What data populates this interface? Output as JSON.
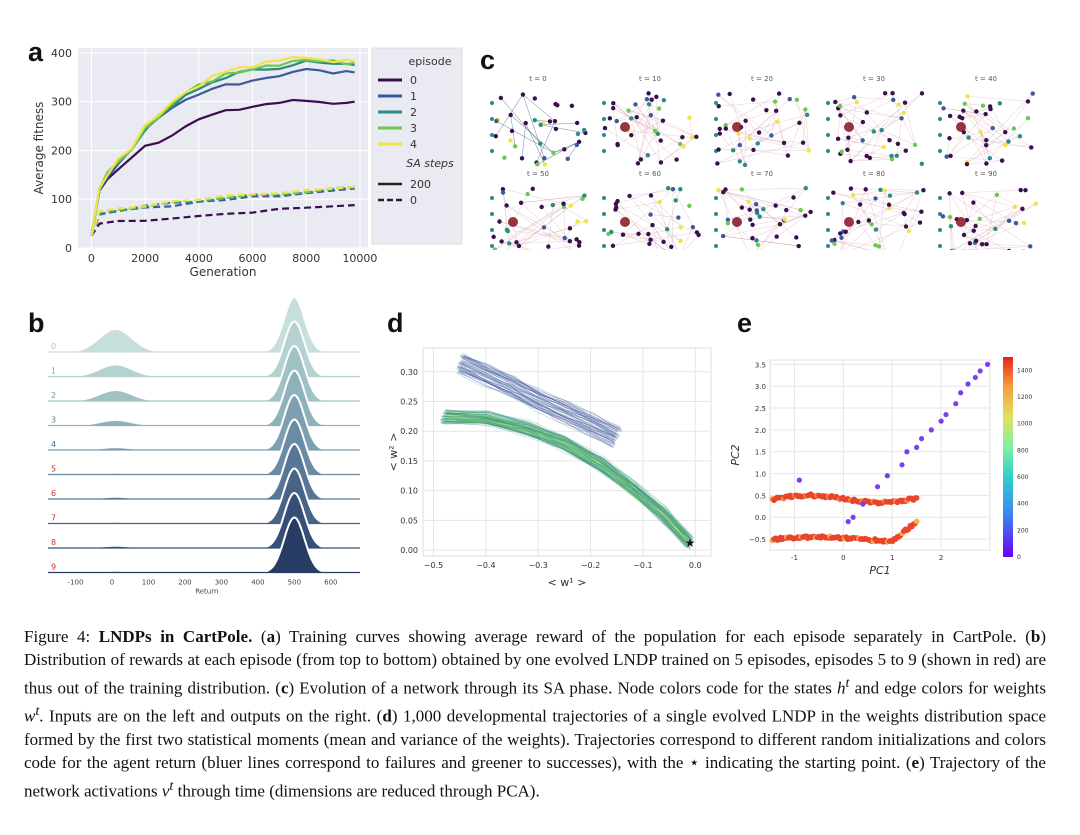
{
  "panels": {
    "a": "a",
    "b": "b",
    "c": "c",
    "d": "d",
    "e": "e"
  },
  "caption": {
    "prefix": "Figure 4: ",
    "title": "LNDPs in CartPole.",
    "s1": " (",
    "a": "a",
    "s2": ") Training curves showing average reward of the population for each episode separately in CartPole. (",
    "b": "b",
    "s3": ") Distribution of rewards at each episode (from top to bottom) obtained by one evolved LNDP trained on 5 episodes, episodes 5 to 9 (shown in red) are thus out of the training distribution. (",
    "c": "c",
    "s4": ") Evolution of a network through its SA phase. Node colors code for the states ",
    "h": "h",
    "t1": "t",
    "s5": " and edge colors for weights ",
    "w": "w",
    "t2": "t",
    "s6": ". Inputs are on the left and outputs on the right. (",
    "d": "d",
    "s7": ") 1,000 developmental trajectories of a single evolved LNDP in the weights distribution space formed by the first two statistical moments (mean and variance of the weights). Trajectories correspond to different random initializations and colors code for the agent return (bluer lines correspond to failures and greener to successes), with the ",
    "star": "⋆",
    "s8": " indicating the starting point. (",
    "e": "e",
    "s9": ") Trajectory of the network activations ",
    "v": "v",
    "t3": "t",
    "s10": " through time (dimensions are reduced through PCA)."
  },
  "chart_data": [
    {
      "panel": "a",
      "type": "line",
      "xlabel": "Generation",
      "ylabel": "Average fitness",
      "xticks": [
        0,
        2000,
        4000,
        6000,
        8000,
        10000
      ],
      "yticks": [
        0,
        100,
        200,
        300,
        400
      ],
      "xlim": [
        -500,
        10300
      ],
      "ylim": [
        0,
        410
      ],
      "grid": true,
      "legend": {
        "position": "right-outside",
        "title_episode": "episode",
        "title_sa": "SA steps",
        "episodes": [
          "0",
          "1",
          "2",
          "3",
          "4"
        ],
        "sa_steps": [
          "200",
          "0"
        ]
      },
      "colors": [
        "#3b0f4f",
        "#3c5a9a",
        "#2a8c82",
        "#6cc94f",
        "#f1e34a"
      ],
      "series_200": [
        {
          "name": "0",
          "x": [
            0,
            300,
            600,
            1000,
            1500,
            2000,
            2500,
            3000,
            3500,
            4000,
            4500,
            5000,
            5500,
            6000,
            6500,
            7000,
            7500,
            8000,
            8500,
            9000,
            9500,
            9800
          ],
          "y": [
            25,
            115,
            140,
            165,
            188,
            210,
            220,
            235,
            250,
            262,
            272,
            278,
            285,
            290,
            295,
            298,
            300,
            302,
            300,
            298,
            300,
            300
          ]
        },
        {
          "name": "1",
          "x": [
            0,
            300,
            600,
            1000,
            1500,
            2000,
            2500,
            3000,
            3500,
            4000,
            4500,
            5000,
            5500,
            6000,
            6500,
            7000,
            7500,
            8000,
            8500,
            9000,
            9500,
            9800
          ],
          "y": [
            25,
            120,
            148,
            175,
            200,
            240,
            262,
            283,
            300,
            312,
            325,
            335,
            340,
            345,
            350,
            355,
            362,
            365,
            362,
            360,
            358,
            360
          ]
        },
        {
          "name": "2",
          "x": [
            0,
            300,
            600,
            1000,
            1500,
            2000,
            2500,
            3000,
            3500,
            4000,
            4500,
            5000,
            5500,
            6000,
            6500,
            7000,
            7500,
            8000,
            8500,
            9000,
            9500,
            9800
          ],
          "y": [
            25,
            122,
            150,
            178,
            203,
            245,
            268,
            290,
            310,
            325,
            340,
            352,
            358,
            362,
            368,
            372,
            378,
            382,
            378,
            376,
            374,
            375
          ]
        },
        {
          "name": "3",
          "x": [
            0,
            300,
            600,
            1000,
            1500,
            2000,
            2500,
            3000,
            3500,
            4000,
            4500,
            5000,
            5500,
            6000,
            6500,
            7000,
            7500,
            8000,
            8500,
            9000,
            9500,
            9800
          ],
          "y": [
            25,
            124,
            152,
            180,
            206,
            250,
            272,
            295,
            315,
            332,
            345,
            358,
            364,
            368,
            374,
            378,
            385,
            388,
            384,
            382,
            380,
            380
          ]
        },
        {
          "name": "4",
          "x": [
            0,
            300,
            600,
            1000,
            1500,
            2000,
            2500,
            3000,
            3500,
            4000,
            4500,
            5000,
            5500,
            6000,
            6500,
            7000,
            7500,
            8000,
            8500,
            9000,
            9500,
            9800
          ],
          "y": [
            25,
            126,
            154,
            182,
            208,
            253,
            276,
            300,
            320,
            336,
            350,
            362,
            368,
            372,
            378,
            382,
            390,
            392,
            388,
            385,
            382,
            383
          ]
        }
      ],
      "series_0": [
        {
          "name": "0",
          "x": [
            0,
            300,
            1000,
            2000,
            3000,
            4000,
            5000,
            6000,
            7000,
            8000,
            9000,
            9800
          ],
          "y": [
            25,
            50,
            55,
            58,
            62,
            66,
            70,
            75,
            78,
            82,
            86,
            88
          ]
        },
        {
          "name": "1",
          "x": [
            0,
            300,
            1000,
            2000,
            3000,
            4000,
            5000,
            6000,
            7000,
            8000,
            9000,
            9800
          ],
          "y": [
            25,
            70,
            75,
            82,
            88,
            95,
            100,
            105,
            108,
            112,
            118,
            122
          ]
        },
        {
          "name": "2",
          "x": [
            0,
            300,
            1000,
            2000,
            3000,
            4000,
            5000,
            6000,
            7000,
            8000,
            9000,
            9800
          ],
          "y": [
            25,
            72,
            78,
            84,
            90,
            97,
            102,
            107,
            110,
            114,
            120,
            124
          ]
        },
        {
          "name": "3",
          "x": [
            0,
            300,
            1000,
            2000,
            3000,
            4000,
            5000,
            6000,
            7000,
            8000,
            9000,
            9800
          ],
          "y": [
            25,
            74,
            80,
            86,
            92,
            99,
            104,
            109,
            112,
            116,
            121,
            125
          ]
        },
        {
          "name": "4",
          "x": [
            0,
            300,
            1000,
            2000,
            3000,
            4000,
            5000,
            6000,
            7000,
            8000,
            9000,
            9800
          ],
          "y": [
            25,
            76,
            82,
            88,
            94,
            100,
            106,
            110,
            114,
            118,
            122,
            126
          ]
        }
      ]
    },
    {
      "panel": "b",
      "type": "area",
      "xlabel": "Return",
      "xticks": [
        -100,
        0,
        100,
        200,
        300,
        400,
        500,
        600
      ],
      "xlim": [
        -170,
        680
      ],
      "rows": [
        "0",
        "1",
        "2",
        "3",
        "4",
        "5",
        "6",
        "7",
        "8",
        "9"
      ],
      "row_label_colors": [
        "#9ec5c6",
        "#6fb0bd",
        "#5aa0b6",
        "#4b8aa8",
        "#3b6e92",
        "#c0392b",
        "#c0392b",
        "#c0392b",
        "#c0392b",
        "#c0392b"
      ],
      "fill_colors": [
        "#c6dfdb",
        "#b4d2d0",
        "#a0c2c5",
        "#8eb2bb",
        "#7d9fb0",
        "#6a8ba3",
        "#587796",
        "#476487",
        "#364f78",
        "#273d66"
      ],
      "low_peak_heights": [
        0.42,
        0.22,
        0.2,
        0.1,
        0.05,
        0.03,
        0.04,
        0.03,
        0.04,
        0.03
      ],
      "main_peak_height": 1
    },
    {
      "panel": "c",
      "type": "network_grid",
      "labels": [
        "t = 0",
        "t = 10",
        "t = 20",
        "t = 30",
        "t = 40",
        "t = 50",
        "t = 60",
        "t = 70",
        "t = 80",
        "t = 90"
      ]
    },
    {
      "panel": "d",
      "type": "line",
      "xlabel": "< w¹ >",
      "ylabel": "< w² >",
      "xticks": [
        -0.5,
        -0.4,
        -0.3,
        -0.2,
        -0.1,
        0.0
      ],
      "xtick_labels": [
        "−0.5",
        "−0.4",
        "−0.3",
        "−0.2",
        "−0.1",
        "0.0"
      ],
      "yticks": [
        0.0,
        0.05,
        0.1,
        0.15,
        0.2,
        0.25,
        0.3
      ],
      "ytick_labels": [
        "0.00",
        "0.05",
        "0.10",
        "0.15",
        "0.20",
        "0.25",
        "0.30"
      ],
      "xlim": [
        -0.52,
        0.03
      ],
      "ylim": [
        -0.01,
        0.34
      ],
      "start_point": [
        -0.01,
        0.012
      ],
      "blue_band": {
        "x": [
          -0.45,
          -0.4,
          -0.35,
          -0.3,
          -0.25,
          -0.2,
          -0.15
        ],
        "y": [
          0.315,
          0.295,
          0.275,
          0.252,
          0.232,
          0.212,
          0.19
        ]
      },
      "green_band": {
        "x": [
          -0.48,
          -0.4,
          -0.32,
          -0.25,
          -0.18,
          -0.12,
          -0.06,
          -0.01
        ],
        "y": [
          0.225,
          0.222,
          0.205,
          0.18,
          0.145,
          0.105,
          0.06,
          0.012
        ]
      }
    },
    {
      "panel": "e",
      "type": "scatter",
      "xlabel": "PC1",
      "ylabel": "PC2",
      "xticks": [
        -1,
        0,
        1,
        2
      ],
      "yticks": [
        -0.5,
        0.0,
        0.5,
        1.0,
        1.5,
        2.0,
        2.5,
        3.0,
        3.5
      ],
      "ytick_labels": [
        "−0.5",
        "0.0",
        "0.5",
        "1.0",
        "1.5",
        "2.0",
        "2.5",
        "3.0",
        "3.5"
      ],
      "xlim": [
        -1.5,
        3.0
      ],
      "ylim": [
        -0.75,
        3.6
      ],
      "colorbar_ticks": [
        0,
        200,
        400,
        600,
        800,
        1000,
        1200,
        1400
      ],
      "purple_points": [
        [
          0.1,
          -0.1
        ],
        [
          0.2,
          0.0
        ],
        [
          0.4,
          0.3
        ],
        [
          0.7,
          0.7
        ],
        [
          0.9,
          0.95
        ],
        [
          1.2,
          1.2
        ],
        [
          1.3,
          1.5
        ],
        [
          1.5,
          1.6
        ],
        [
          1.6,
          1.8
        ],
        [
          1.8,
          2.0
        ],
        [
          2.0,
          2.2
        ],
        [
          2.1,
          2.35
        ],
        [
          2.3,
          2.6
        ],
        [
          2.4,
          2.85
        ],
        [
          2.55,
          3.05
        ],
        [
          2.7,
          3.2
        ],
        [
          2.8,
          3.35
        ],
        [
          2.95,
          3.5
        ],
        [
          -0.9,
          0.85
        ]
      ]
    }
  ]
}
